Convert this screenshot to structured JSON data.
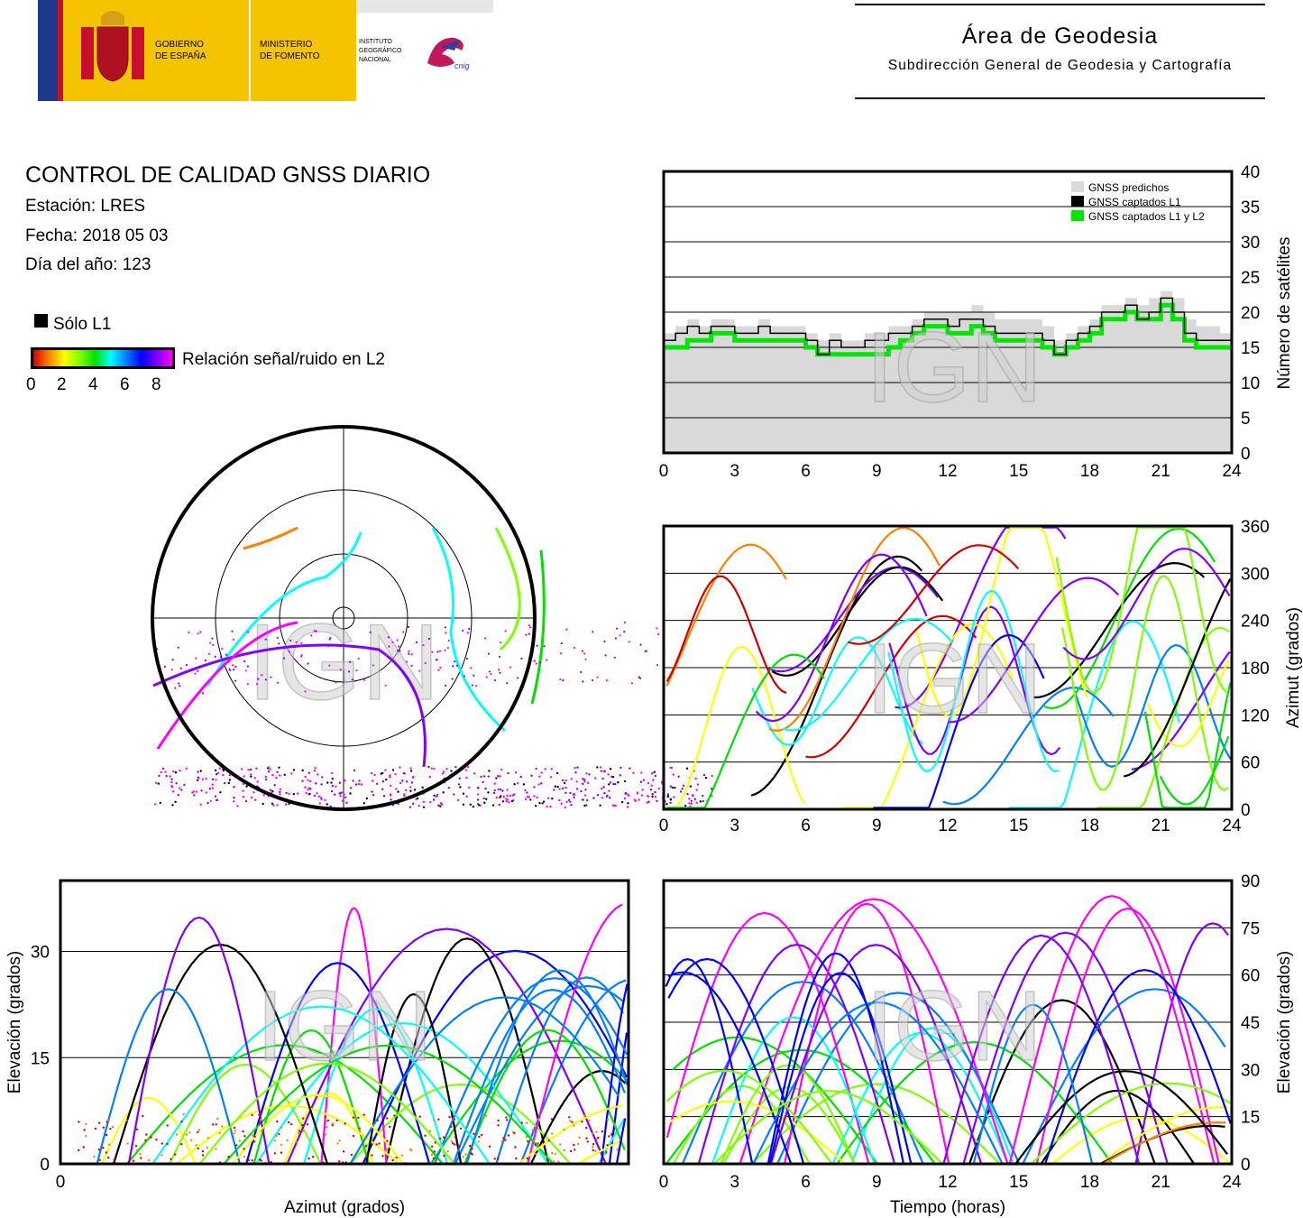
{
  "header": {
    "gobierno": [
      "GOBIERNO",
      "DE ESPAÑA"
    ],
    "ministerio": [
      "MINISTERIO",
      "DE FOMENTO"
    ],
    "instituto": [
      "INSTITUTO",
      "GEOGRÁFICO",
      "NACIONAL"
    ],
    "cnig": "cnig",
    "area_title": "Área de Geodesia",
    "area_subtitle": "Subdirección General de Geodesia y Cartografía"
  },
  "info": {
    "title": "CONTROL DE CALIDAD GNSS DIARIO",
    "station": "Estación: LRES",
    "date": "Fecha: 2018 05 03",
    "doy": "Día del año: 123"
  },
  "legend": {
    "solo_l1": "Sólo L1",
    "snr_label": "Relación señal/ruido en L2",
    "snr_ticks": [
      "0",
      "2",
      "4",
      "6",
      "8"
    ]
  },
  "watermark": "IGN",
  "colors": {
    "predicted": "#d9d9d9",
    "captured_l1": "#000000",
    "captured_l1l2": "#00e600",
    "grid": "#000000",
    "snr_scale": [
      "#d00000",
      "#ff8000",
      "#ffff00",
      "#80ff00",
      "#00e000",
      "#00ffff",
      "#0080ff",
      "#0000ff",
      "#8000ff",
      "#ff00ff"
    ]
  },
  "chart_data": [
    {
      "type": "area",
      "id": "satellites",
      "x": [
        0,
        0.5,
        1,
        1.5,
        2,
        2.5,
        3,
        3.5,
        4,
        4.5,
        5,
        5.5,
        6,
        6.5,
        7,
        7.5,
        8,
        8.5,
        9,
        9.5,
        10,
        10.5,
        11,
        11.5,
        12,
        12.5,
        13,
        13.5,
        14,
        14.5,
        15,
        15.5,
        16,
        16.5,
        17,
        17.5,
        18,
        18.5,
        19,
        19.5,
        20,
        20.5,
        21,
        21.5,
        22,
        22.5,
        23,
        23.5,
        24
      ],
      "series": [
        {
          "name": "GNSS predichos",
          "values": [
            17,
            18,
            19,
            18,
            19,
            19,
            18,
            18,
            19,
            18,
            18,
            18,
            17,
            16,
            17,
            16,
            16,
            17,
            17,
            18,
            18,
            19,
            20,
            20,
            20,
            20,
            21,
            20,
            19,
            19,
            19,
            19,
            18,
            16,
            17,
            18,
            19,
            21,
            21,
            22,
            21,
            22,
            23,
            22,
            19,
            18,
            18,
            17,
            17
          ]
        },
        {
          "name": "GNSS captados L1",
          "values": [
            16,
            17,
            18,
            17,
            18,
            18,
            17,
            17,
            18,
            17,
            17,
            17,
            16,
            14,
            16,
            15,
            15,
            16,
            16,
            17,
            17,
            18,
            19,
            19,
            18,
            19,
            19,
            18,
            17,
            17,
            17,
            17,
            16,
            14,
            16,
            17,
            18,
            20,
            20,
            21,
            19,
            20,
            22,
            20,
            17,
            16,
            16,
            16,
            16
          ]
        },
        {
          "name": "GNSS captados L1 y L2",
          "values": [
            15,
            15,
            16,
            16,
            17,
            17,
            16,
            16,
            16,
            16,
            16,
            16,
            15,
            14,
            14,
            14,
            14,
            14,
            14,
            15,
            16,
            17,
            18,
            18,
            17,
            17,
            18,
            17,
            16,
            16,
            16,
            16,
            15,
            14,
            15,
            16,
            17,
            19,
            19,
            20,
            19,
            19,
            21,
            19,
            16,
            15,
            15,
            15,
            15
          ]
        }
      ],
      "xlim": [
        0,
        24
      ],
      "ylim": [
        0,
        40
      ],
      "xticks": [
        "0",
        "3",
        "6",
        "9",
        "12",
        "15",
        "18",
        "21",
        "24"
      ],
      "yticks": [
        "0",
        "5",
        "10",
        "15",
        "20",
        "25",
        "30",
        "35",
        "40"
      ],
      "ylabel": "Número de satélites",
      "legend_position": "top-right",
      "grid": true
    },
    {
      "type": "scatter",
      "id": "skyplot",
      "elevation_rings": [
        0,
        30,
        60,
        90
      ]
    },
    {
      "type": "scatter",
      "id": "azimuth",
      "xlim": [
        0,
        24
      ],
      "ylim": [
        0,
        360
      ],
      "xticks": [
        "0",
        "3",
        "6",
        "9",
        "12",
        "15",
        "18",
        "21",
        "24"
      ],
      "yticks": [
        "0",
        "60",
        "120",
        "180",
        "240",
        "300",
        "360"
      ],
      "ylabel": "Azimut (grados)",
      "grid": true
    },
    {
      "type": "scatter",
      "id": "elev_vs_azimuth",
      "xlim": [
        0,
        360
      ],
      "ylim": [
        0,
        40
      ],
      "xticks": [
        "0"
      ],
      "yticks": [
        "0",
        "15",
        "30"
      ],
      "xlabel": "Azimut (grados)",
      "ylabel": "Elevación (grados)",
      "grid": true
    },
    {
      "type": "line",
      "id": "elev_vs_time",
      "xlim": [
        0,
        24
      ],
      "ylim": [
        0,
        90
      ],
      "xticks": [
        "0",
        "3",
        "6",
        "9",
        "12",
        "15",
        "18",
        "21",
        "24"
      ],
      "yticks": [
        "0",
        "15",
        "30",
        "45",
        "60",
        "75",
        "90"
      ],
      "xlabel": "Tiempo (horas)",
      "ylabel": "Elevación (grados)",
      "grid": true
    }
  ]
}
